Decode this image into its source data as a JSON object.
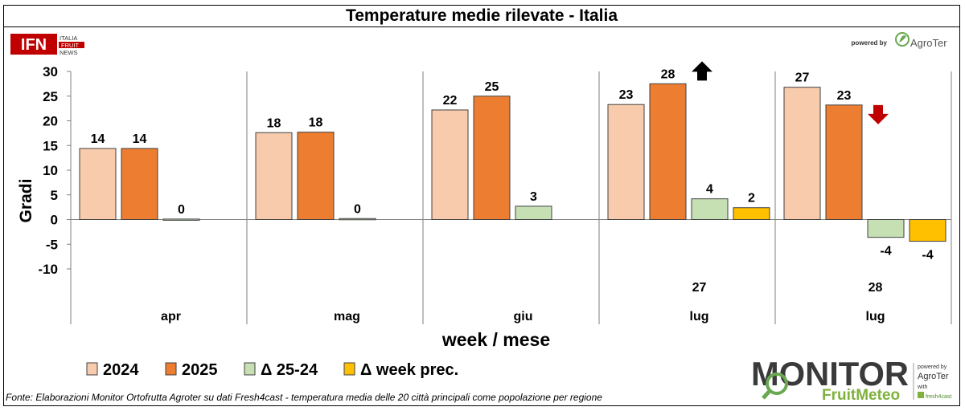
{
  "chart_data": {
    "type": "bar",
    "title": "Temperature medie rilevate - Italia",
    "ylabel": "Gradi",
    "xlabel": "week / mese",
    "ylim": [
      -10,
      30
    ],
    "yticks": [
      30,
      25,
      20,
      15,
      10,
      5,
      0,
      -5,
      -10
    ],
    "groups": [
      {
        "week": "",
        "month": "apr"
      },
      {
        "week": "",
        "month": "mag"
      },
      {
        "week": "",
        "month": "giu"
      },
      {
        "week": "27",
        "month": "lug"
      },
      {
        "week": "28",
        "month": "lug"
      }
    ],
    "series": [
      {
        "name": "2024",
        "color": "#F8CBAD",
        "values": [
          14.4,
          17.6,
          22.2,
          23.3,
          26.8
        ],
        "labels": [
          "14",
          "18",
          "22",
          "23",
          "27"
        ]
      },
      {
        "name": "2025",
        "color": "#ED7D31",
        "values": [
          14.4,
          17.7,
          25.0,
          27.5,
          23.2
        ],
        "labels": [
          "14",
          "18",
          "25",
          "28",
          "23"
        ]
      },
      {
        "name": "Δ 25-24",
        "color": "#C6E0B4",
        "values": [
          0.1,
          0.2,
          2.7,
          4.2,
          -3.6
        ],
        "labels": [
          "0",
          "0",
          "3",
          "4",
          "-4"
        ]
      },
      {
        "name": "Δ week prec.",
        "color": "#FFC000",
        "values": [
          null,
          null,
          null,
          2.4,
          -4.4
        ],
        "labels": [
          null,
          null,
          null,
          "2",
          "-4"
        ]
      }
    ],
    "annotations": [
      {
        "group": 3,
        "series": 1,
        "symbol": "up-arrow",
        "color": "#000000"
      },
      {
        "group": 4,
        "series": 1,
        "symbol": "down-arrow",
        "color": "#C00000"
      }
    ],
    "grid": false,
    "legend_position": "bottom-left"
  },
  "logos": {
    "ifn": {
      "mark": "IFN",
      "lines": [
        "ITALIA",
        "FRUIT",
        "NEWS"
      ]
    },
    "agroter_top": {
      "powered_by": "powered by",
      "brand": "AgroTer"
    },
    "monitor": {
      "word": "MONITOR",
      "sub": "FruitMeteo",
      "powered_by": "powered by",
      "brand": "AgroTer",
      "with": "with",
      "partner": "fresh4cast"
    }
  },
  "source_note": "Fonte: Elaborazioni Monitor Ortofrutta Agroter su dati Fresh4cast - temperatura media delle 20 città principali come popolazione per regione"
}
